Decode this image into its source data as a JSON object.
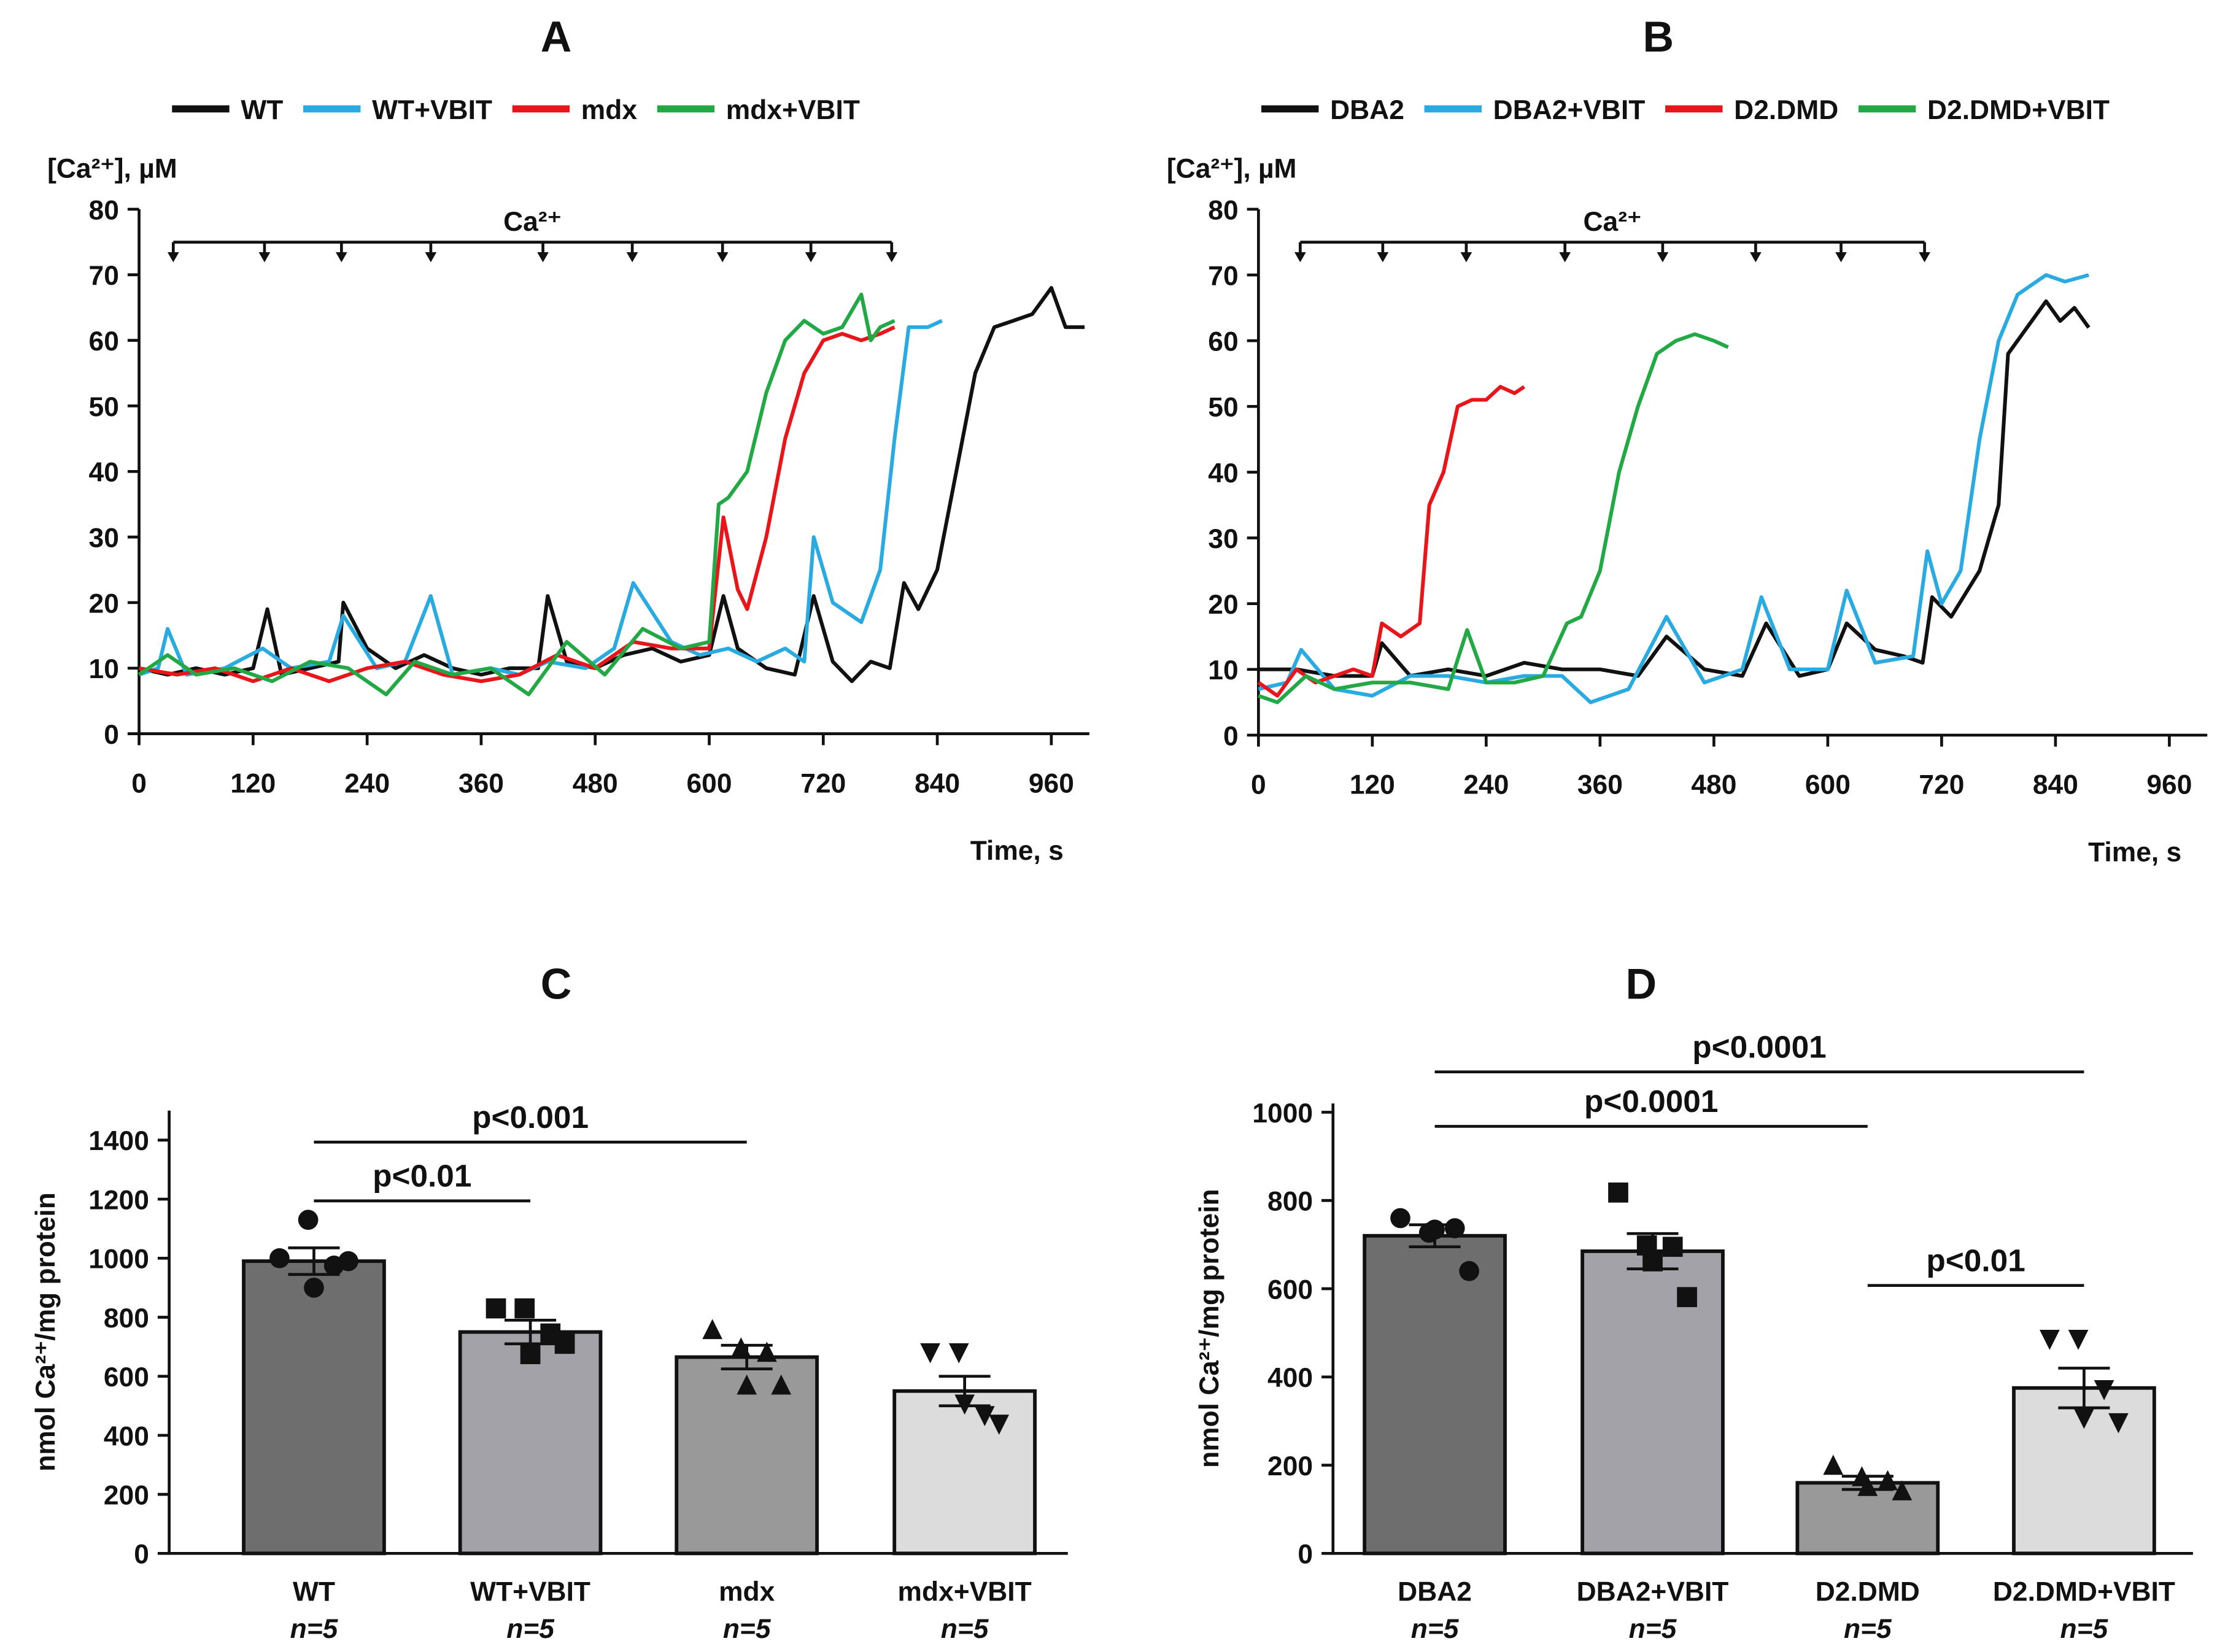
{
  "chart_data": [
    {
      "type": "line",
      "title": "A",
      "ylabel": "[Ca²⁺], µM",
      "xlabel": "Time, s",
      "xlim": [
        0,
        1000
      ],
      "xticks": [
        0,
        120,
        240,
        360,
        480,
        600,
        720,
        840,
        960
      ],
      "ylim": [
        0,
        80
      ],
      "yticks": [
        0,
        10,
        20,
        30,
        40,
        50,
        60,
        70,
        80
      ],
      "annotation": {
        "label": "Ca²⁺",
        "times": [
          36,
          132,
          213,
          307,
          425,
          519,
          614,
          707,
          792
        ]
      },
      "series": [
        {
          "name": "WT",
          "color": "#111111",
          "x": [
            0,
            30,
            60,
            90,
            120,
            135,
            150,
            180,
            210,
            215,
            240,
            270,
            300,
            330,
            360,
            390,
            420,
            430,
            450,
            480,
            510,
            540,
            570,
            600,
            615,
            630,
            660,
            690,
            710,
            730,
            750,
            770,
            790,
            805,
            820,
            840,
            860,
            880,
            900,
            920,
            940,
            960,
            975,
            995
          ],
          "values": [
            10,
            9,
            10,
            9,
            10,
            19,
            9,
            10,
            11,
            20,
            13,
            10,
            12,
            10,
            9,
            10,
            10,
            21,
            11,
            10,
            12,
            13,
            11,
            12,
            21,
            13,
            10,
            9,
            21,
            11,
            8,
            11,
            10,
            23,
            19,
            25,
            40,
            55,
            62,
            63,
            64,
            68,
            62,
            62
          ]
        },
        {
          "name": "WT+VBIT",
          "color": "#29abe2",
          "x": [
            0,
            20,
            30,
            50,
            90,
            130,
            160,
            200,
            215,
            250,
            280,
            307,
            330,
            370,
            400,
            430,
            470,
            500,
            520,
            560,
            590,
            620,
            650,
            680,
            700,
            710,
            730,
            760,
            780,
            795,
            810,
            830,
            845
          ],
          "values": [
            9,
            10,
            16,
            9,
            10,
            13,
            10,
            11,
            18,
            10,
            11,
            21,
            9,
            10,
            9,
            11,
            10,
            13,
            23,
            14,
            12,
            13,
            11,
            13,
            11,
            30,
            20,
            17,
            25,
            45,
            62,
            62,
            63
          ]
        },
        {
          "name": "mdx",
          "color": "#e8161b",
          "x": [
            0,
            40,
            80,
            120,
            160,
            200,
            240,
            280,
            320,
            360,
            400,
            440,
            480,
            520,
            560,
            600,
            615,
            630,
            640,
            660,
            680,
            700,
            720,
            740,
            760,
            780,
            795
          ],
          "values": [
            10,
            9,
            10,
            8,
            10,
            8,
            10,
            11,
            9,
            8,
            9,
            12,
            10,
            14,
            13,
            13,
            33,
            22,
            19,
            30,
            45,
            55,
            60,
            61,
            60,
            61,
            62
          ]
        },
        {
          "name": "mdx+VBIT",
          "color": "#22a845",
          "x": [
            0,
            30,
            60,
            100,
            140,
            180,
            220,
            260,
            290,
            330,
            370,
            410,
            450,
            490,
            530,
            570,
            600,
            610,
            620,
            640,
            660,
            680,
            700,
            720,
            740,
            760,
            770,
            780,
            795
          ],
          "values": [
            9,
            12,
            9,
            10,
            8,
            11,
            10,
            6,
            11,
            9,
            10,
            6,
            14,
            9,
            16,
            13,
            14,
            35,
            36,
            40,
            52,
            60,
            63,
            61,
            62,
            67,
            60,
            62,
            63
          ]
        }
      ]
    },
    {
      "type": "line",
      "title": "B",
      "ylabel": "[Ca²⁺], µM",
      "xlabel": "Time, s",
      "xlim": [
        0,
        1000
      ],
      "xticks": [
        0,
        120,
        240,
        360,
        480,
        600,
        720,
        840,
        960
      ],
      "ylim": [
        0,
        80
      ],
      "yticks": [
        0,
        10,
        20,
        30,
        40,
        50,
        60,
        70,
        80
      ],
      "annotation": {
        "label": "Ca²⁺",
        "times": [
          44,
          131,
          219,
          323,
          426,
          524,
          614,
          702
        ]
      },
      "series": [
        {
          "name": "DBA2",
          "color": "#111111",
          "x": [
            0,
            40,
            80,
            120,
            130,
            160,
            200,
            240,
            280,
            320,
            360,
            400,
            430,
            470,
            510,
            535,
            570,
            600,
            620,
            650,
            680,
            700,
            710,
            730,
            760,
            780,
            790,
            810,
            830,
            845,
            860,
            875
          ],
          "values": [
            10,
            10,
            9,
            9,
            14,
            9,
            10,
            9,
            11,
            10,
            10,
            9,
            15,
            10,
            9,
            17,
            9,
            10,
            17,
            13,
            12,
            11,
            21,
            18,
            25,
            35,
            58,
            62,
            66,
            63,
            65,
            62
          ]
        },
        {
          "name": "DBA2+VBIT",
          "color": "#29abe2",
          "x": [
            0,
            30,
            45,
            80,
            120,
            160,
            200,
            240,
            280,
            320,
            350,
            390,
            430,
            470,
            510,
            530,
            560,
            600,
            620,
            650,
            690,
            705,
            720,
            740,
            760,
            780,
            800,
            830,
            850,
            875
          ],
          "values": [
            7,
            8,
            13,
            7,
            6,
            9,
            9,
            8,
            9,
            9,
            5,
            7,
            18,
            8,
            10,
            21,
            10,
            10,
            22,
            11,
            12,
            28,
            20,
            25,
            45,
            60,
            67,
            70,
            69,
            70
          ]
        },
        {
          "name": "D2.DMD",
          "color": "#e8161b",
          "x": [
            0,
            20,
            40,
            60,
            80,
            100,
            120,
            130,
            150,
            170,
            180,
            195,
            210,
            225,
            240,
            255,
            270,
            280
          ],
          "values": [
            8,
            6,
            10,
            8,
            9,
            10,
            9,
            17,
            15,
            17,
            35,
            40,
            50,
            51,
            51,
            53,
            52,
            53
          ]
        },
        {
          "name": "D2.DMD+VBIT",
          "color": "#22a845",
          "x": [
            0,
            20,
            50,
            80,
            120,
            160,
            200,
            220,
            240,
            270,
            300,
            325,
            340,
            360,
            380,
            400,
            420,
            440,
            460,
            480,
            495
          ],
          "values": [
            6,
            5,
            9,
            7,
            8,
            8,
            7,
            16,
            8,
            8,
            9,
            17,
            18,
            25,
            40,
            50,
            58,
            60,
            61,
            60,
            59
          ]
        }
      ]
    },
    {
      "type": "bar",
      "title": "C",
      "ylabel": "nmol Ca²⁺/mg protein",
      "ylim": [
        0,
        1500
      ],
      "yticks": [
        0,
        200,
        400,
        600,
        800,
        1000,
        1200,
        1400
      ],
      "categories": [
        "WT",
        "WT+VBIT",
        "mdx",
        "mdx+VBIT"
      ],
      "sublabels": [
        "n=5",
        "n=5",
        "n=5",
        "n=5"
      ],
      "values": [
        990,
        750,
        665,
        550
      ],
      "errors": [
        45,
        40,
        40,
        50
      ],
      "colors": [
        "#6e6e6e",
        "#a2a2a8",
        "#999999",
        "#dcdcdc"
      ],
      "markers": [
        "circle",
        "square",
        "triangle",
        "triangle-down"
      ],
      "points": [
        [
          1000,
          1130,
          975,
          900,
          990
        ],
        [
          830,
          830,
          745,
          675,
          710
        ],
        [
          760,
          698,
          683,
          572,
          572
        ],
        [
          678,
          678,
          465,
          504,
          436
        ]
      ],
      "annotations": [
        {
          "label": "p<0.01",
          "span": [
            "WT",
            "WT+VBIT"
          ]
        },
        {
          "label": "p<0.001",
          "span": [
            "WT",
            "mdx"
          ]
        }
      ]
    },
    {
      "type": "bar",
      "title": "D",
      "ylabel": "nmol Ca²⁺/mg protein",
      "ylim": [
        0,
        1020
      ],
      "yticks": [
        0,
        200,
        400,
        600,
        800,
        1000
      ],
      "categories": [
        "DBA2",
        "DBA2+VBIT",
        "D2.DMD",
        "D2.DMD+VBIT"
      ],
      "sublabels": [
        "n=5",
        "n=5",
        "n=5",
        "n=5"
      ],
      "values": [
        720,
        685,
        160,
        375
      ],
      "errors": [
        25,
        40,
        15,
        45
      ],
      "colors": [
        "#6e6e6e",
        "#a2a2a8",
        "#999999",
        "#dcdcdc"
      ],
      "markers": [
        "circle",
        "square",
        "triangle",
        "triangle-down"
      ],
      "points": [
        [
          760,
          727,
          737,
          734,
          640
        ],
        [
          818,
          698,
          695,
          662,
          581
        ],
        [
          201,
          175,
          166,
          153,
          143
        ],
        [
          484,
          484,
          370,
          305,
          295
        ]
      ],
      "annotations": [
        {
          "label": "p<0.0001",
          "span": [
            "DBA2",
            "D2.DMD+VBIT"
          ]
        },
        {
          "label": "p<0.0001",
          "span": [
            "DBA2",
            "D2.DMD"
          ]
        },
        {
          "label": "p<0.01",
          "span": [
            "D2.DMD",
            "D2.DMD+VBIT"
          ]
        }
      ]
    }
  ]
}
